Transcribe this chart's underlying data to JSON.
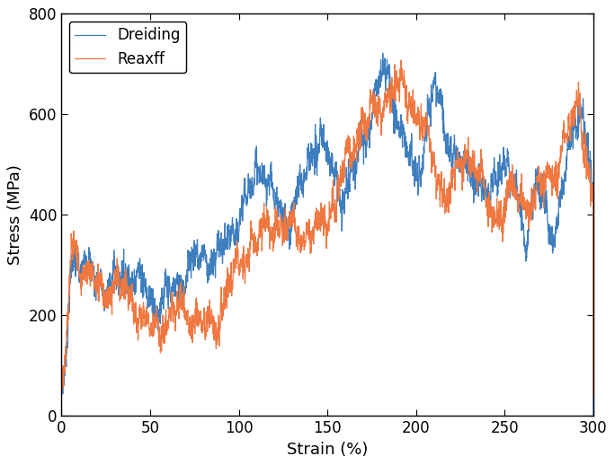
{
  "dreiding_color": "#3d7ebf",
  "reaxff_color": "#f07840",
  "xlabel": "Strain (%)",
  "ylabel": "Stress (MPa)",
  "xlim": [
    0,
    300
  ],
  "ylim": [
    0,
    800
  ],
  "xticks": [
    0,
    50,
    100,
    150,
    200,
    250,
    300
  ],
  "yticks": [
    0,
    200,
    400,
    600,
    800
  ],
  "legend_labels": [
    "Dreiding",
    "Reaxff"
  ],
  "legend_loc": "upper left",
  "figsize": [
    6.84,
    5.18
  ],
  "dpi": 100,
  "linewidth": 0.9,
  "background_color": "#ffffff",
  "spine_color": "#000000"
}
